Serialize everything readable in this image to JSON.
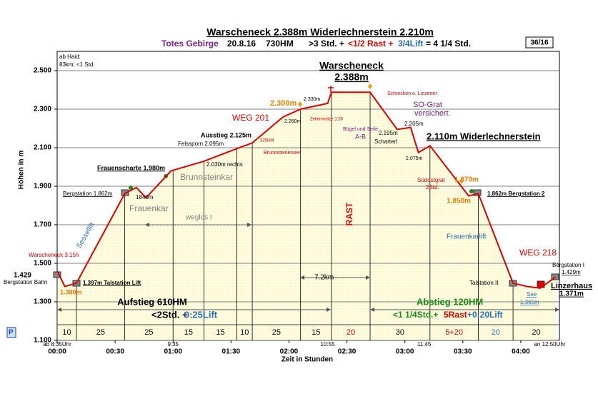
{
  "chart_data": {
    "type": "line",
    "title": "Warscheneck  2.388m  Widerlechnerstein  2.210m",
    "subtitle_parts": [
      {
        "text": "Totes Gebirge",
        "color": "#7b1f8a"
      },
      {
        "text": "20.8.16",
        "color": "#000000"
      },
      {
        "text": "730HM",
        "color": "#000000"
      },
      {
        "text": ">3 Std. +",
        "color": "#000000"
      },
      {
        "text": "<1/2 Rast +",
        "color": "#e00000"
      },
      {
        "text": "3/4Lift",
        "color": "#2a6fb5"
      },
      {
        "text": "= 4 1/4 Std.",
        "color": "#000000"
      }
    ],
    "badge": "36/16",
    "y_label": "Höhen in m",
    "x_label": "Zeit in Stunden",
    "color": "#e00000",
    "x": [
      0,
      4,
      10,
      35,
      41,
      46,
      59,
      76,
      93,
      101,
      117,
      126,
      140,
      142,
      162,
      176,
      183,
      187,
      193,
      213,
      218,
      236,
      243,
      250,
      258
    ],
    "values": [
      1460,
      1380,
      1397,
      1862,
      1893,
      1840,
      1980,
      2030,
      2095,
      2125,
      2260,
      2300,
      2330,
      2388,
      2388,
      2195,
      2205,
      2075,
      2110,
      1850,
      1862,
      1397,
      1380,
      1371,
      1429
    ],
    "xlim": [
      0,
      260
    ],
    "ylim": [
      1100,
      2600
    ],
    "xticks": [
      {
        "value": 0,
        "label": "00:00"
      },
      {
        "value": 30,
        "label": "00:30"
      },
      {
        "value": 60,
        "label": "01:00"
      },
      {
        "value": 90,
        "label": "01:30"
      },
      {
        "value": 120,
        "label": "02:00"
      },
      {
        "value": 150,
        "label": "02:30"
      },
      {
        "value": 180,
        "label": "03:00"
      },
      {
        "value": 210,
        "label": "03:30"
      },
      {
        "value": 240,
        "label": "04:00"
      }
    ],
    "yticks": [
      {
        "value": 1100,
        "label": "1.100"
      },
      {
        "value": 1300,
        "label": "1.300"
      },
      {
        "value": 1500,
        "label": "1.500"
      },
      {
        "value": 1700,
        "label": "1.700"
      },
      {
        "value": 1900,
        "label": "1.900"
      },
      {
        "value": 2100,
        "label": "2.100"
      },
      {
        "value": 2300,
        "label": "2.300"
      },
      {
        "value": 2500,
        "label": "2.500"
      }
    ],
    "grid": true,
    "clock_labels": [
      {
        "value": 0,
        "label": "ab 8:35Uhr"
      },
      {
        "value": 60,
        "label": "9:35"
      },
      {
        "value": 140,
        "label": "10:55"
      },
      {
        "value": 190,
        "label": "11:45"
      },
      {
        "value": 255,
        "label": "an 12:50Uhr"
      }
    ],
    "segment_bounds": [
      0,
      10,
      35,
      60,
      76,
      93,
      101,
      126,
      142,
      162,
      193,
      218,
      236,
      260
    ],
    "segments": [
      {
        "label": "10",
        "color": "#000000"
      },
      {
        "label": "25",
        "color": "#000000"
      },
      {
        "label": "25",
        "color": "#000000"
      },
      {
        "label": "15",
        "color": "#000000"
      },
      {
        "label": "15",
        "color": "#000000"
      },
      {
        "label": "10",
        "color": "#000000"
      },
      {
        "label": "25",
        "color": "#000000"
      },
      {
        "label": "15",
        "color": "#000000"
      },
      {
        "label": "20",
        "color": "#e00000"
      },
      {
        "label": "30",
        "color": "#000000"
      },
      {
        "label": "5+20",
        "color": "#e00000"
      },
      {
        "label": "20",
        "color": "#2a6fb5"
      },
      {
        "label": "20",
        "color": "#000000"
      }
    ],
    "annotations": [
      {
        "text": "ab Haid:",
        "color": "#000000"
      },
      {
        "text": "83km; <1 Std.",
        "color": "#000000"
      },
      {
        "text": "Warscheneck",
        "color": "#000000"
      },
      {
        "text": "2.388m",
        "color": "#000000"
      },
      {
        "text": "Schrecken o. Liezener",
        "color": "#e00000"
      },
      {
        "text": "2.300m",
        "color": "#e87e00"
      },
      {
        "text": "2.330m",
        "color": "#000000"
      },
      {
        "text": "Zellenmütze 1:30",
        "color": "#e00000"
      },
      {
        "text": "2.260m",
        "color": "#000000"
      },
      {
        "text": "SO-Grat",
        "color": "#7b1f8a"
      },
      {
        "text": "versichert",
        "color": "#7b1f8a"
      },
      {
        "text": "2.205m",
        "color": "#000000"
      },
      {
        "text": "WEG 201",
        "color": "#e00000"
      },
      {
        "text": "Bügel und Seile",
        "color": "#7b1f8a"
      },
      {
        "text": "A-B",
        "color": "#7b1f8a"
      },
      {
        "text": "2.195m",
        "color": "#000000"
      },
      {
        "text": "Scharterl",
        "color": "#000000"
      },
      {
        "text": "2.110m Widerlechnerstein",
        "color": "#000000"
      },
      {
        "text": "Ausstieg 2.125m",
        "color": "#000000"
      },
      {
        "text": "Felssporn 2.095m",
        "color": "#000000"
      },
      {
        "text": "325HM",
        "color": "#e00000"
      },
      {
        "text": "Brunnsteinersee",
        "color": "#e00000"
      },
      {
        "text": "2.075m",
        "color": "#000000"
      },
      {
        "text": "2.030m rechts",
        "color": "#000000"
      },
      {
        "text": "Frauenscharte 1.980m",
        "color": "#000000"
      },
      {
        "text": "Brunnsteinkar",
        "color": "#808080"
      },
      {
        "text": "Südostgrat",
        "color": "#e00000"
      },
      {
        "text": "1.870m",
        "color": "#e87e00"
      },
      {
        "text": "2Std.",
        "color": "#e00000"
      },
      {
        "text": "Bergstation 1.862m",
        "color": "#000000"
      },
      {
        "text": "1840m",
        "color": "#000000"
      },
      {
        "text": "1.862m Bergstation 2",
        "color": "#000000"
      },
      {
        "text": "1.850m",
        "color": "#e87e00"
      },
      {
        "text": "Frauenkar",
        "color": "#808080"
      },
      {
        "text": "weglos I",
        "color": "#808080"
      },
      {
        "text": "RAST",
        "color": "#e00000"
      },
      {
        "text": "Sessellift",
        "color": "#2a6fb5"
      },
      {
        "text": "Frauenkarlift",
        "color": "#2a6fb5"
      },
      {
        "text": "WEG 218",
        "color": "#e00000"
      },
      {
        "text": "Warscheneck 3:15h",
        "color": "#e00000"
      },
      {
        "text": "Bergstation I",
        "color": "#000000"
      },
      {
        "text": "1.429m",
        "color": "#000000"
      },
      {
        "text": "1.380m",
        "color": "#e87e00"
      },
      {
        "text": "1.397m Talstation Lift",
        "color": "#000000"
      },
      {
        "text": "Bergstation Bahn",
        "color": "#000000"
      },
      {
        "text": "7.2km",
        "color": "#000000"
      },
      {
        "text": "Talstation II",
        "color": "#000000"
      },
      {
        "text": "Linzerhaus",
        "color": "#000000"
      },
      {
        "text": "1.371m",
        "color": "#000000"
      },
      {
        "text": "See",
        "color": "#2a6fb5"
      },
      {
        "text": "1.365m",
        "color": "#2a6fb5"
      },
      {
        "text": "Aufstieg 610HM",
        "color": "#000000"
      },
      {
        "text": "<2Std. +",
        "color": "#000000"
      },
      {
        "text": "0:25Lift",
        "color": "#2a6fb5"
      },
      {
        "text": "Abstieg  120HM",
        "color": "#1a8a1a"
      },
      {
        "text": "<1 1/4Std.+",
        "color": "#1a8a1a"
      },
      {
        "text": "5Rast",
        "color": "#e00000"
      },
      {
        "text": "+0:20Lift",
        "color": "#2a6fb5"
      },
      {
        "text": "1.429",
        "color": "#000000"
      },
      {
        "text": "P",
        "color": "#1a3fb5"
      }
    ]
  }
}
